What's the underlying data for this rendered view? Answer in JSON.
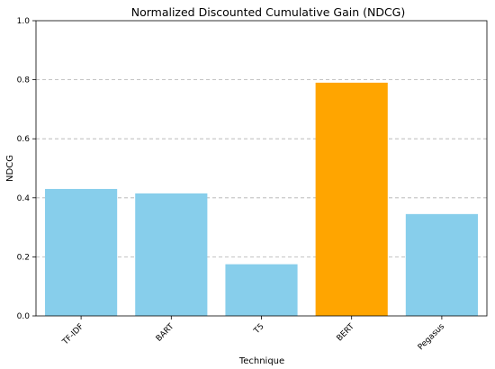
{
  "chart_data": {
    "type": "bar",
    "title": "Normalized Discounted Cumulative Gain (NDCG)",
    "xlabel": "Technique",
    "ylabel": "NDCG",
    "categories": [
      "TF-IDF",
      "BART",
      "T5",
      "BERT",
      "Pegasus"
    ],
    "values": [
      0.43,
      0.415,
      0.175,
      0.79,
      0.345
    ],
    "bar_colors": [
      "#87CEEB",
      "#87CEEB",
      "#87CEEB",
      "#FFA500",
      "#87CEEB"
    ],
    "ylim": [
      0,
      1.0
    ],
    "yticks": [
      "0.0",
      "0.2",
      "0.4",
      "0.6",
      "0.8",
      "1.0"
    ],
    "grid": "y-dashed",
    "x_tick_rotation": "45deg"
  }
}
